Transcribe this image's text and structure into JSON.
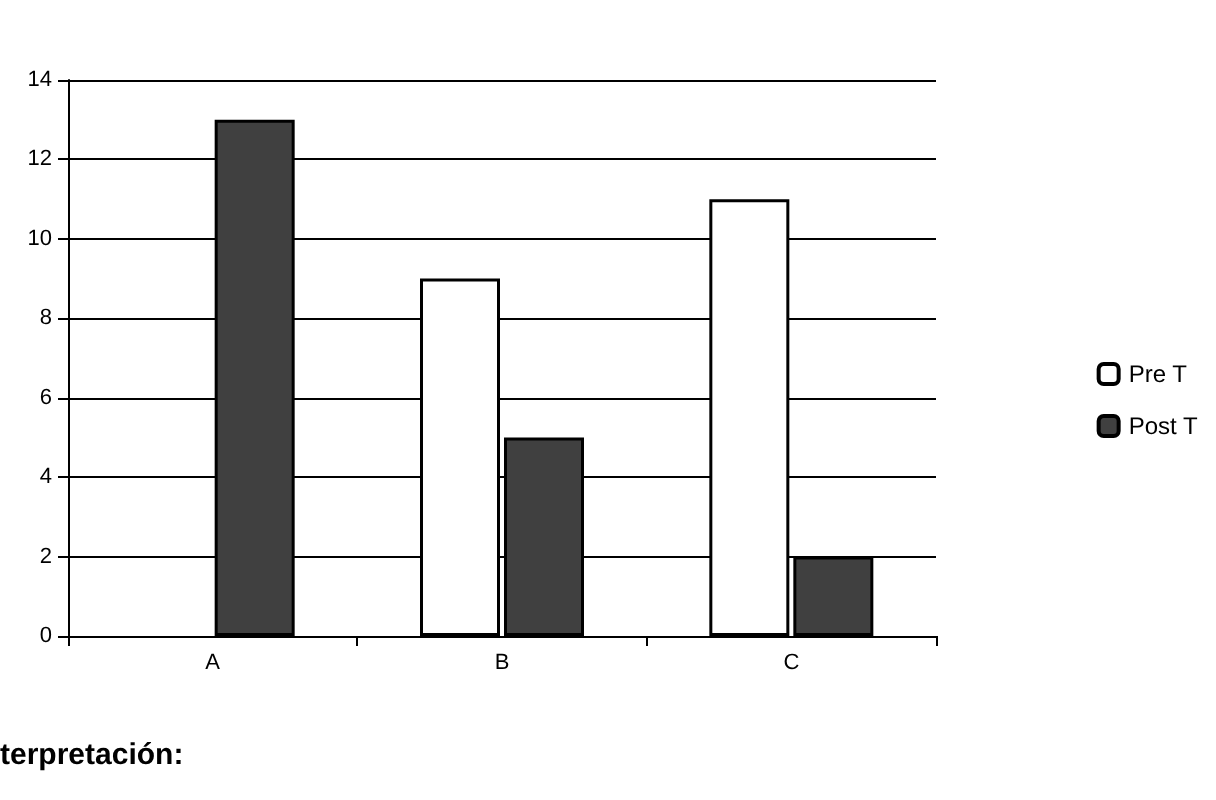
{
  "chart_data": {
    "type": "bar",
    "categories": [
      "A",
      "B",
      "C"
    ],
    "series": [
      {
        "name": "Pre T",
        "color": "#ffffff",
        "values": [
          null,
          9,
          11
        ]
      },
      {
        "name": "Post T",
        "color": "#404040",
        "values": [
          13,
          5,
          2
        ]
      }
    ],
    "ylim": [
      0,
      14
    ],
    "yticks": [
      0,
      2,
      4,
      6,
      8,
      10,
      12,
      14
    ],
    "grid": "y",
    "legend": "right",
    "annotations": [
      "terpretación:"
    ]
  }
}
